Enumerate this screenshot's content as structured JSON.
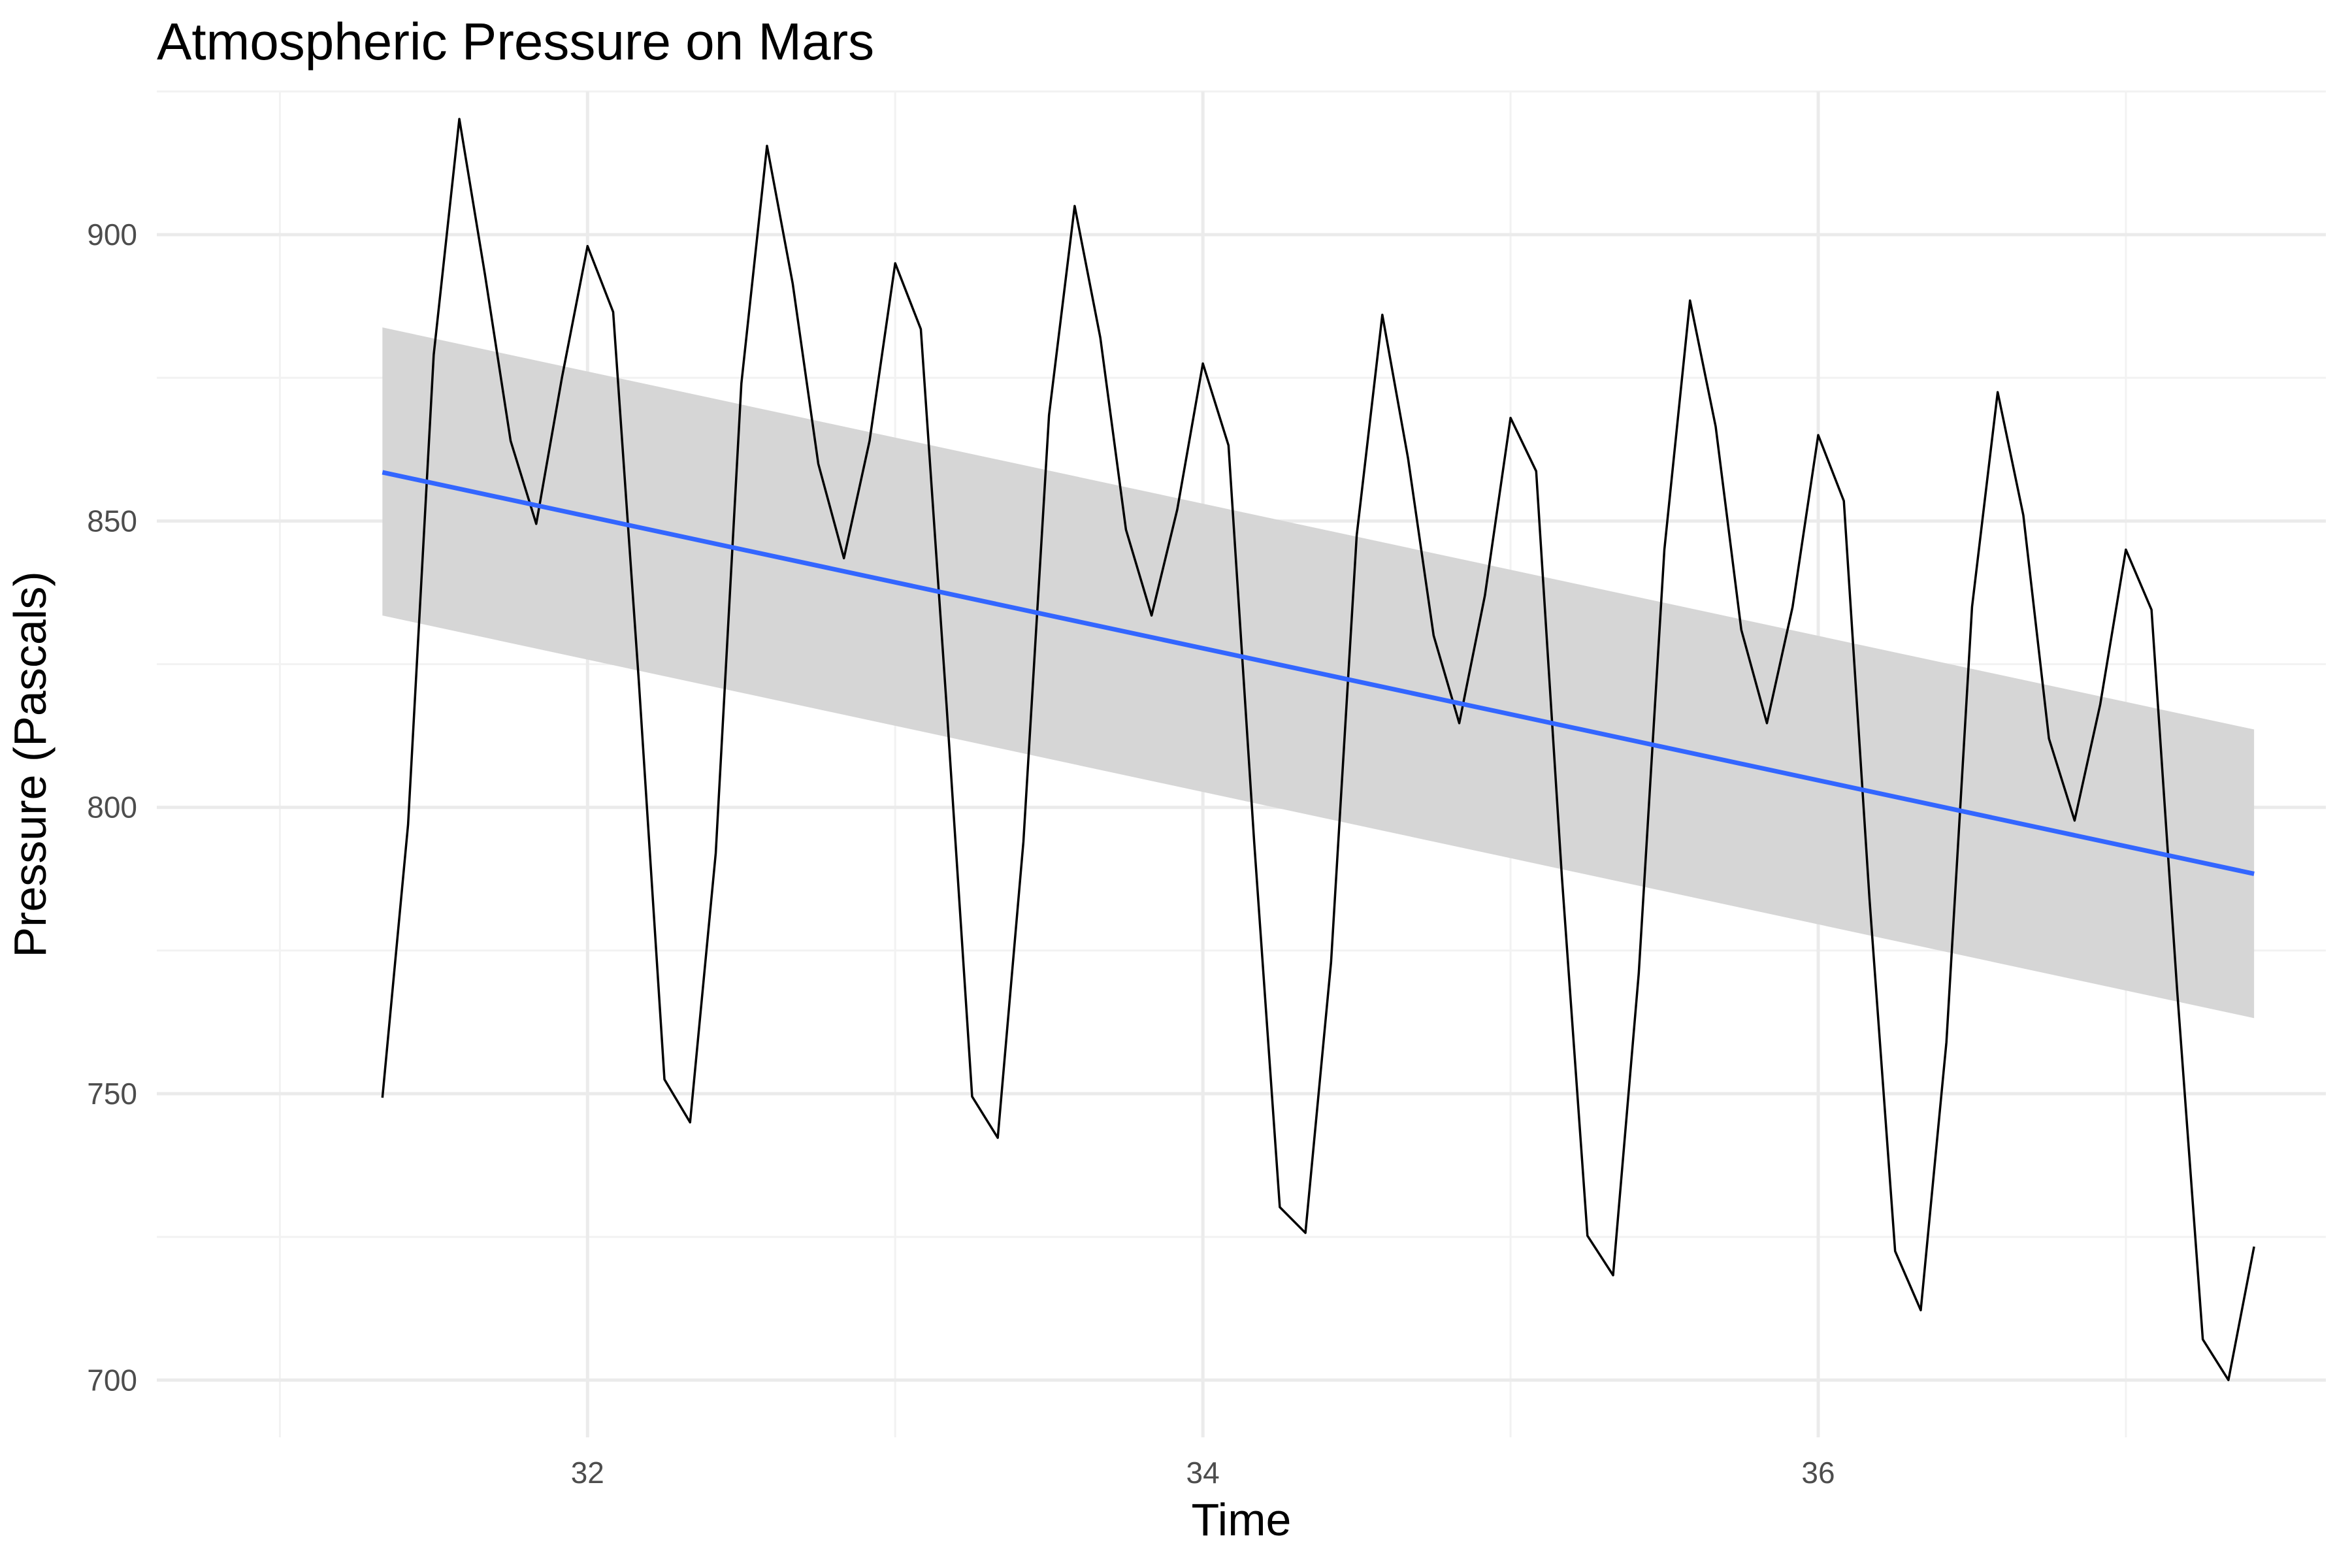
{
  "chart_data": {
    "type": "line",
    "title": "Atmospheric Pressure on Mars",
    "xlabel": "Time",
    "ylabel": "Pressure (Pascals)",
    "xlim": [
      30.6,
      37.65
    ],
    "ylim": [
      690,
      925
    ],
    "x_ticks": [
      32,
      34,
      36
    ],
    "x_tick_labels": [
      "32",
      "34",
      "36"
    ],
    "y_ticks": [
      700,
      750,
      800,
      850,
      900
    ],
    "y_tick_labels": [
      "700",
      "750",
      "800",
      "850",
      "900"
    ],
    "grid": true,
    "legend": "none",
    "series": [
      {
        "x": [
          31.3333,
          31.4167,
          31.5,
          31.5833,
          31.6667,
          31.75,
          31.8333,
          31.9167,
          32.0,
          32.0833,
          32.1667,
          32.25,
          32.3333,
          32.4167,
          32.5,
          32.5833,
          32.6667,
          32.75,
          32.8333,
          32.9167,
          33.0,
          33.0833,
          33.1667,
          33.25,
          33.3333,
          33.4167,
          33.5,
          33.5833,
          33.6667,
          33.75,
          33.8333,
          33.9167,
          34.0,
          34.0833,
          34.1667,
          34.25,
          34.3333,
          34.4167,
          34.5,
          34.5833,
          34.6667,
          34.75,
          34.8333,
          34.9167,
          35.0,
          35.0833,
          35.1667,
          35.25,
          35.3333,
          35.4167,
          35.5,
          35.5833,
          35.6667,
          35.75,
          35.8333,
          35.9167,
          36.0,
          36.0833,
          36.1667,
          36.25,
          36.3333,
          36.4167,
          36.5,
          36.5833,
          36.6667,
          36.75,
          36.8333,
          36.9167,
          37.0,
          37.0833,
          37.1667,
          37.25,
          37.3333,
          37.4167
        ],
        "values": [
          749.3,
          797,
          879,
          920.2,
          893,
          864,
          849.5,
          875,
          898,
          886.5,
          822,
          752.5,
          745,
          792,
          874,
          915.5,
          891.5,
          860,
          843.5,
          864,
          895,
          883.5,
          818,
          749.5,
          742.3,
          794,
          868.5,
          905,
          882,
          848.5,
          833.5,
          852,
          877.5,
          863.2,
          794,
          730.2,
          725.7,
          773,
          847.5,
          886,
          861,
          830,
          814.7,
          837,
          868,
          858.7,
          788,
          725.2,
          718.3,
          771,
          845,
          888.5,
          866.5,
          831,
          814.7,
          835,
          865,
          853.5,
          784,
          722.5,
          712.2,
          759,
          835,
          872.5,
          851,
          812,
          797.7,
          818,
          845,
          834.5,
          768,
          707.1,
          700,
          723.3
        ]
      },
      {
        "name": "linear fit",
        "x": [
          31.3333,
          37.4167
        ],
        "values": [
          858.5,
          788.4
        ],
        "ci_lower": [
          833.5,
          763.2
        ],
        "ci_upper": [
          883.8,
          813.6
        ]
      }
    ],
    "colors": {
      "line": "#000000",
      "fit": "#3366ff",
      "band": "#d6d6d6",
      "grid_major": "#ebebeb",
      "grid_minor": "#f2f2f2"
    }
  }
}
